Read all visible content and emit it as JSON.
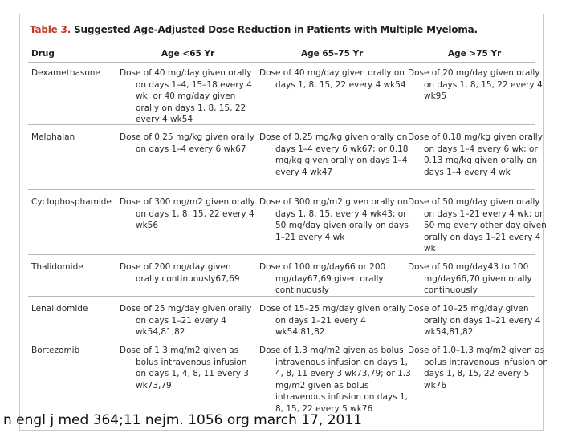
{
  "table": {
    "title_num": "Table 3.",
    "title_text": "Suggested Age-Adjusted Dose Reduction in Patients with Multiple Myeloma.",
    "headers": [
      "Drug",
      "Age <65 Yr",
      "Age 65–75 Yr",
      "Age >75 Yr"
    ],
    "rows": [
      {
        "drug": "Dexamethasone",
        "a": "Dose of 40 mg/day given orally on days 1–4, 15–18 every 4 wk; or 40 mg/day given orally on days 1, 8, 15, 22 every 4 wk54",
        "b": "Dose of 40 mg/day given orally on days 1, 8, 15, 22 every 4 wk54",
        "c": "Dose of 20 mg/day given orally on days 1, 8, 15, 22 every 4 wk95"
      },
      {
        "drug": "Melphalan",
        "a": "Dose of 0.25 mg/kg given orally on days 1–4 every 6 wk67",
        "b": "Dose of 0.25 mg/kg given orally on days 1–4 every 6 wk67; or 0.18 mg/kg given orally on days 1–4 every 4 wk47",
        "c": "Dose of 0.18 mg/kg given orally on days 1–4 every 6 wk; or 0.13 mg/kg given orally on days 1–4 every 4 wk"
      },
      {
        "drug": "Cyclophosphamide",
        "a": "Dose of 300 mg/m2 given orally on days 1, 8, 15, 22 every 4 wk56",
        "b": "Dose of 300 mg/m2 given orally on days 1, 8, 15, every 4 wk43; or 50 mg/day given orally on days 1–21 every 4 wk",
        "c": "Dose of 50 mg/day given orally on days 1–21 every 4 wk; or 50 mg every other day given orally on days 1–21 every 4 wk"
      },
      {
        "drug": "Thalidomide",
        "a": "Dose of 200 mg/day given orally continuously67,69",
        "b": "Dose of 100 mg/day66 or 200 mg/day67,69 given orally continuously",
        "c": "Dose of 50 mg/day43 to 100 mg/day66,70 given orally continuously"
      },
      {
        "drug": "Lenalidomide",
        "a": "Dose of 25 mg/day given orally on days 1–21 every 4 wk54,81,82",
        "b": "Dose of 15–25 mg/day given orally on days 1–21 every 4 wk54,81,82",
        "c": "Dose of 10–25 mg/day given orally on days 1–21 every 4 wk54,81,82"
      },
      {
        "drug": "Bortezomib",
        "a": "Dose of 1.3 mg/m2 given as bolus intravenous infusion on days 1, 4, 8, 11 every 3 wk73,79",
        "b": "Dose of 1.3 mg/m2 given as bolus intravenous infusion on days 1, 4, 8, 11 every 3 wk73,79; or 1.3 mg/m2 given as bolus intravenous infusion on days 1, 8, 15, 22 every 5 wk76",
        "c": "Dose of 1.0–1.3 mg/m2 given as bolus intravenous infusion on days 1, 8, 15, 22 every 5 wk76"
      }
    ]
  },
  "footer": "n engl j med 364;11 nejm. 1056 org march 17, 2011"
}
